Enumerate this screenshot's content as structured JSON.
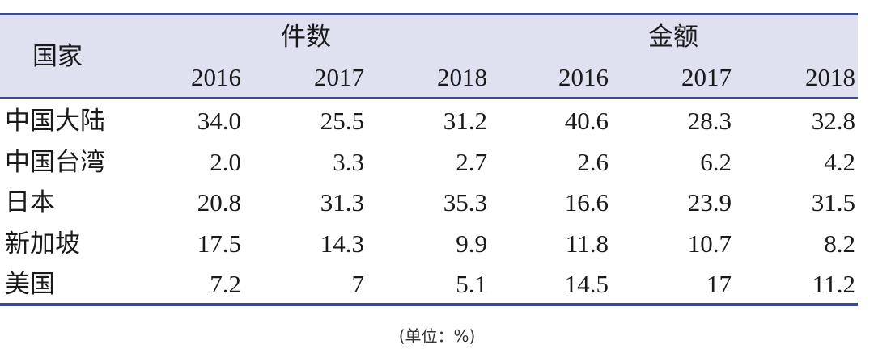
{
  "table": {
    "header": {
      "country": "国家",
      "groups": [
        "件数",
        "金额"
      ],
      "years": [
        "2016",
        "2017",
        "2018",
        "2016",
        "2017",
        "2018"
      ]
    },
    "rows": [
      [
        "中国大陆",
        "34.0",
        "25.5",
        "31.2",
        "40.6",
        "28.3",
        "32.8"
      ],
      [
        "中国台湾",
        "2.0",
        "3.3",
        "2.7",
        "2.6",
        "6.2",
        "4.2"
      ],
      [
        "日本",
        "20.8",
        "31.3",
        "35.3",
        "16.6",
        "23.9",
        "31.5"
      ],
      [
        "新加坡",
        "17.5",
        "14.3",
        "9.9",
        "11.8",
        "10.7",
        "8.2"
      ],
      [
        "美国",
        "7.2",
        "7",
        "5.1",
        "14.5",
        "17",
        "11.2"
      ]
    ]
  },
  "note": "(单位：%)"
}
